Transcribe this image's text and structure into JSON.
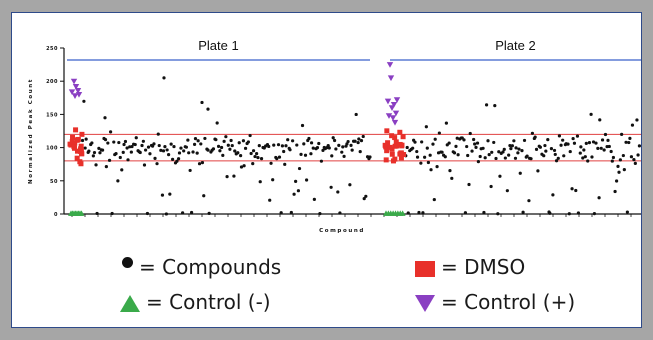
{
  "chart_data": {
    "type": "scatter",
    "ylabel": "Normalized Peak Count",
    "xlabel": "Compound",
    "ylim": [
      0,
      250
    ],
    "yticks": [
      "0",
      "50",
      "100",
      "150",
      "200",
      "250"
    ],
    "threshold_lines": [
      80,
      120
    ],
    "plates": [
      {
        "name": "Plate 1",
        "range": [
          0,
          1
        ]
      },
      {
        "name": "Plate 2",
        "range": [
          1,
          2
        ]
      }
    ],
    "series": [
      {
        "name": "Compounds",
        "marker": "circle",
        "color": "#111111"
      },
      {
        "name": "DMSO",
        "marker": "square",
        "color": "#e8302a"
      },
      {
        "name": "Control (-)",
        "marker": "triangle-up",
        "color": "#3aaa4a"
      },
      {
        "name": "Control (+)",
        "marker": "triangle-down",
        "color": "#8a3fc2"
      }
    ],
    "grid": false
  },
  "legend": {
    "compounds": "= Compounds",
    "dmso": "= DMSO",
    "control_neg": "= Control (-)",
    "control_pos": "= Control (+)"
  },
  "colors": {
    "background": "#a6a6a6",
    "panel_border": "#2e4a8a",
    "plate_line": "#3a62c9",
    "threshold": "#e04040"
  }
}
